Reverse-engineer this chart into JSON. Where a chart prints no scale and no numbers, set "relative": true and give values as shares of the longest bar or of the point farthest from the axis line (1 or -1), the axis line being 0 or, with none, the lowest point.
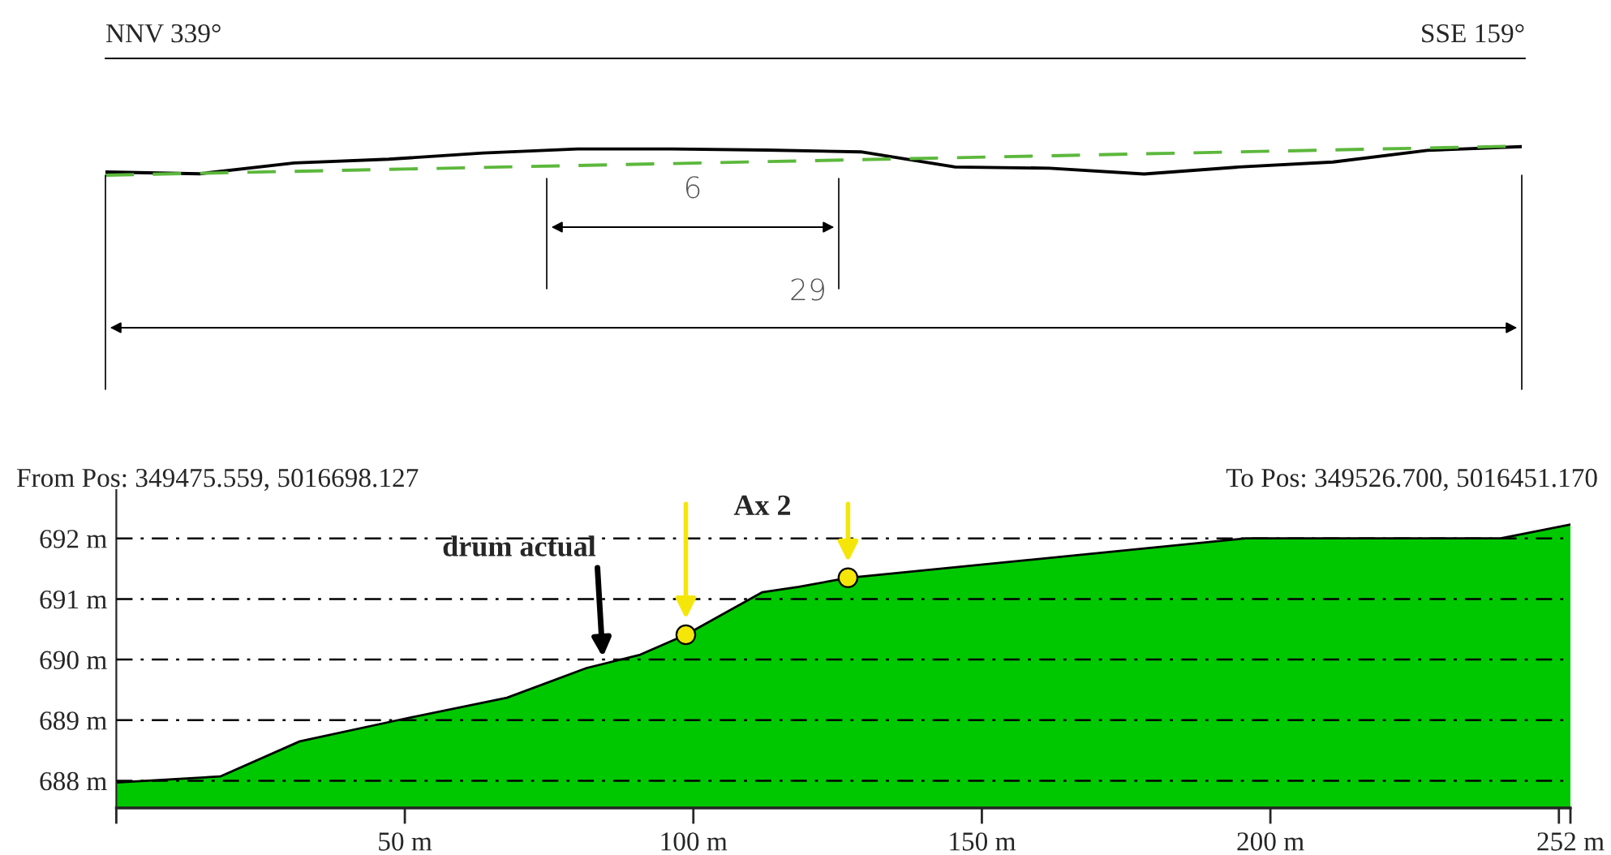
{
  "chart_data": [
    {
      "type": "line",
      "relative": true,
      "tick_labels": false,
      "categories": [
        null,
        null,
        null,
        null,
        null,
        null,
        null,
        null,
        null,
        null,
        null,
        null,
        null,
        null,
        null,
        null
      ],
      "series": [
        {
          "color": "#000000",
          "line_style": "solid",
          "values": [
            0.11,
            0.05,
            0.42,
            0.55,
            0.76,
            0.9,
            0.9,
            0.86,
            0.8,
            0.28,
            0.24,
            0.04,
            0.28,
            0.45,
            0.85,
            0.98
          ]
        },
        {
          "color": "#5cb83c",
          "line_style": "dashed",
          "values": [
            0,
            0.067,
            0.133,
            0.2,
            0.267,
            0.333,
            0.4,
            0.467,
            0.533,
            0.6,
            0.667,
            0.733,
            0.8,
            0.867,
            0.933,
            1
          ]
        }
      ],
      "annotations": [
        "NNV 339°",
        "SSE 159°",
        "6",
        "29"
      ]
    },
    {
      "type": "area",
      "grid": "y",
      "xlim": [
        0,
        252
      ],
      "ylim": [
        687.55,
        692.8
      ],
      "xticks": [
        {
          "value": 0,
          "label": null
        },
        {
          "value": 50,
          "label": "50 m"
        },
        {
          "value": 100,
          "label": "100 m"
        },
        {
          "value": 150,
          "label": "150 m"
        },
        {
          "value": 200,
          "label": "200 m"
        },
        {
          "value": 250,
          "label": null
        },
        {
          "value": 252,
          "label": "252 m"
        }
      ],
      "yticks": [
        {
          "value": 688,
          "label": "688 m"
        },
        {
          "value": 689,
          "label": "689 m"
        },
        {
          "value": 690,
          "label": "690 m"
        },
        {
          "value": 691,
          "label": "691 m"
        },
        {
          "value": 692,
          "label": "692 m"
        }
      ],
      "series": [
        {
          "type": "area",
          "color": "#00c800",
          "x": [
            0,
            18,
            31.8,
            49.3,
            67.7,
            81.5,
            90.8,
            98.7,
            111.9,
            118.3,
            126.8,
            195.7,
            239.9,
            252
          ],
          "values": [
            687.97,
            688.07,
            688.65,
            689.01,
            689.37,
            689.86,
            690.08,
            690.41,
            691.11,
            691.2,
            691.35,
            692.0,
            692.0,
            692.23
          ]
        },
        {
          "type": "scatter",
          "color": "#f5e60a",
          "marker": "circle",
          "x": [
            98.7,
            126.8
          ],
          "values": [
            690.41,
            691.35
          ]
        }
      ],
      "annotations": [
        "From Pos: 349475.559, 5016698.127",
        "To Pos: 349526.700, 5016451.170",
        {
          "text": "drum actual",
          "x": 84.3,
          "y": 690.04
        },
        "Ax 2"
      ]
    }
  ]
}
